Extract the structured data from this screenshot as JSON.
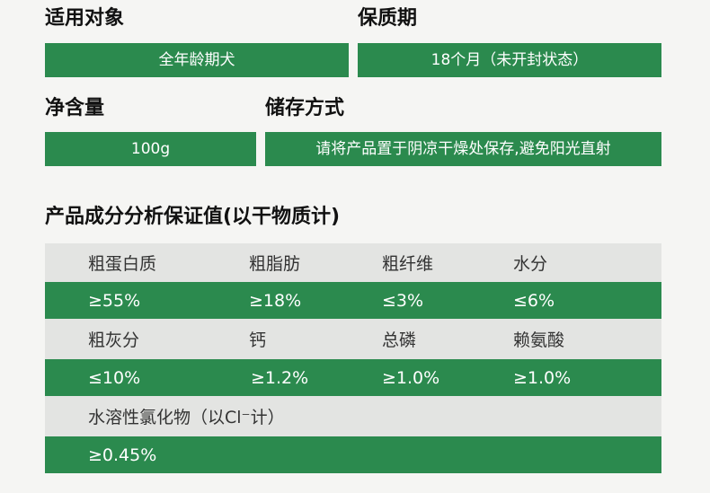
{
  "target": {
    "label": "适用对象",
    "value": "全年龄期犬"
  },
  "shelf_life": {
    "label": "保质期",
    "value": "18个月（未开封状态）"
  },
  "net_weight": {
    "label": "净含量",
    "value": "100g"
  },
  "storage": {
    "label": "储存方式",
    "value": "请将产品置于阴凉干燥处保存,避免阳光直射"
  },
  "analysis": {
    "title": "产品成分分析保证值(以干物质计)",
    "rows": [
      {
        "type": "header",
        "cells": [
          "粗蛋白质",
          "粗脂肪",
          "粗纤维",
          "水分"
        ]
      },
      {
        "type": "value",
        "cells": [
          "≥55%",
          "≥18%",
          "≤3%",
          "≤6%"
        ]
      },
      {
        "type": "header",
        "cells": [
          "粗灰分",
          "钙",
          "总磷",
          "赖氨酸"
        ]
      },
      {
        "type": "value",
        "cells": [
          "≤10%",
          "≥1.2%",
          "≥1.0%",
          "≥1.0%"
        ]
      },
      {
        "type": "header",
        "cells": [
          "水溶性氯化物（以Cl⁻计）"
        ]
      },
      {
        "type": "value",
        "cells": [
          "≥0.45%"
        ]
      }
    ]
  },
  "colors": {
    "accent_green": "#2b8a4e",
    "table_grey": "#e3e4e2",
    "background": "#f5f5f3"
  }
}
